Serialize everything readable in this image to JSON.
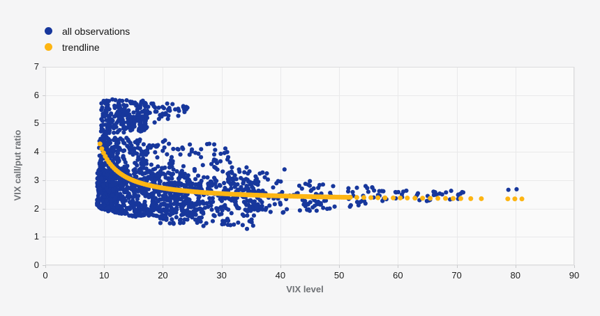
{
  "page": {
    "background": "#f5f5f6",
    "plot_background": "#fafafa",
    "gridline_color": "#e9e9ea",
    "border_color": "#dcdcde",
    "tick_color": "#c8c9cb",
    "tick_label_color": "#1c1c1c",
    "axis_title_color": "#6f7276"
  },
  "chart_data": {
    "type": "scatter",
    "title": "",
    "xlabel": "VIX level",
    "ylabel": "VIX call/put ratio",
    "xlim": [
      0,
      90
    ],
    "ylim": [
      0,
      7
    ],
    "x_ticks": [
      0,
      10,
      20,
      30,
      40,
      50,
      60,
      70,
      80,
      90
    ],
    "y_ticks": [
      0,
      1,
      2,
      3,
      4,
      5,
      6,
      7
    ],
    "grid": true,
    "legend_position": "top-left",
    "legend": [
      {
        "label": "all observations",
        "color": "#17379c"
      },
      {
        "label": "trendline",
        "color": "#fdb513"
      }
    ],
    "seed": 1337,
    "series": [
      {
        "name": "all observations",
        "type": "scatter",
        "color": "#17379c",
        "marker_radius": 3.1,
        "x_range_observed": [
          8.8,
          80.2
        ],
        "y_range_observed": [
          1.25,
          5.9
        ],
        "clusters": [
          {
            "name": "upper-blob-core",
            "x": [
              9.4,
              17.5
            ],
            "y_top": [
              5.85,
              5.8
            ],
            "y_bot": [
              4.55,
              4.75
            ],
            "n": 235
          },
          {
            "name": "upper-blob-tail",
            "x": [
              17.5,
              24.2
            ],
            "y_top": [
              5.75,
              5.62
            ],
            "y_bot": [
              4.95,
              5.3
            ],
            "n": 38
          },
          {
            "name": "left-neck",
            "x": [
              9.1,
              12.5
            ],
            "y_top": [
              4.55,
              4.5
            ],
            "y_bot": [
              3.3,
              3.35
            ],
            "n": 150
          },
          {
            "name": "mid-band",
            "x": [
              12.5,
              22
            ],
            "y_top": [
              4.5,
              4.4
            ],
            "y_bot": [
              3.3,
              3.3
            ],
            "n": 115
          },
          {
            "name": "mid-band-right",
            "x": [
              22,
              31.5
            ],
            "y_top": [
              4.3,
              4.3
            ],
            "y_bot": [
              3.25,
              3.2
            ],
            "n": 42
          },
          {
            "name": "mid-sparse",
            "x": [
              31,
              38.5
            ],
            "y_top": [
              3.6,
              3.4
            ],
            "y_bot": [
              3.05,
              3.0
            ],
            "n": 20
          },
          {
            "name": "main-mass-left",
            "x": [
              8.8,
              14
            ],
            "y_top": [
              3.35,
              3.35
            ],
            "y_bot": [
              2.0,
              1.75
            ],
            "n": 430
          },
          {
            "name": "main-mass",
            "x": [
              14,
              26
            ],
            "y_top": [
              3.3,
              3.2
            ],
            "y_bot": [
              1.7,
              1.8
            ],
            "n": 470
          },
          {
            "name": "main-mass-right",
            "x": [
              26,
              37
            ],
            "y_top": [
              3.15,
              3.0
            ],
            "y_bot": [
              1.85,
              1.95
            ],
            "n": 200
          },
          {
            "name": "low-tail",
            "x": [
              19,
              36
            ],
            "y_top": [
              1.75,
              1.95
            ],
            "y_bot": [
              1.5,
              1.28
            ],
            "n": 65
          },
          {
            "name": "sparse-40s",
            "x": [
              37,
              47
            ],
            "y_top": [
              3.05,
              2.95
            ],
            "y_bot": [
              1.8,
              1.9
            ],
            "n": 60
          },
          {
            "name": "below-trend-45",
            "x": [
              44,
              48
            ],
            "y_top": [
              2.3,
              2.3
            ],
            "y_bot": [
              1.9,
              1.95
            ],
            "n": 12
          },
          {
            "name": "sparse-50s",
            "x": [
              47,
              56.5
            ],
            "y_top": [
              2.85,
              2.8
            ],
            "y_bot": [
              2.0,
              2.05
            ],
            "n": 30
          },
          {
            "name": "clump-57",
            "x": [
              56.5,
              59
            ],
            "y_top": [
              2.65,
              2.65
            ],
            "y_bot": [
              2.25,
              2.25
            ],
            "n": 8
          },
          {
            "name": "clump-60",
            "x": [
              59.5,
              62
            ],
            "y_top": [
              2.65,
              2.65
            ],
            "y_bot": [
              2.3,
              2.3
            ],
            "n": 8
          },
          {
            "name": "clump-64",
            "x": [
              63,
              65.5
            ],
            "y_top": [
              2.6,
              2.6
            ],
            "y_bot": [
              2.25,
              2.25
            ],
            "n": 9
          },
          {
            "name": "clump-67",
            "x": [
              66,
              68.3
            ],
            "y_top": [
              2.62,
              2.62
            ],
            "y_bot": [
              2.45,
              2.45
            ],
            "n": 8
          },
          {
            "name": "clump-70",
            "x": [
              68.6,
              71.3
            ],
            "y_top": [
              2.62,
              2.62
            ],
            "y_bot": [
              2.3,
              2.3
            ],
            "n": 9
          }
        ],
        "points": [
          [
            24,
            5.55
          ],
          [
            40.7,
            3.38
          ],
          [
            78.8,
            2.66
          ],
          [
            80.2,
            2.68
          ]
        ]
      },
      {
        "name": "trendline",
        "type": "trend",
        "color": "#fdb513",
        "marker_radius": 3.5,
        "formula": "ratio = 2.25 + 6.6 / (VIX - 6.05)",
        "params": {
          "c": 2.25,
          "a": 6.6,
          "b": 6.05
        },
        "dense_x_range": [
          9.3,
          52
        ],
        "dense_x_step": 0.3,
        "discrete_x": [
          53,
          54.2,
          55.4,
          56.6,
          57.8,
          59.2,
          60.4,
          61.6,
          62.9,
          64.2,
          65.5,
          66.8,
          68.1,
          69.4,
          70.7,
          72.4,
          74.2,
          78.7,
          79.9,
          81.1
        ],
        "approx_y_by_vix": {
          "9.3": 4.28,
          "10": 3.92,
          "15": 2.99,
          "20": 2.72,
          "30": 2.53,
          "40": 2.44,
          "50": 2.4,
          "60": 2.37,
          "70": 2.35,
          "80": 2.34
        }
      }
    ]
  }
}
